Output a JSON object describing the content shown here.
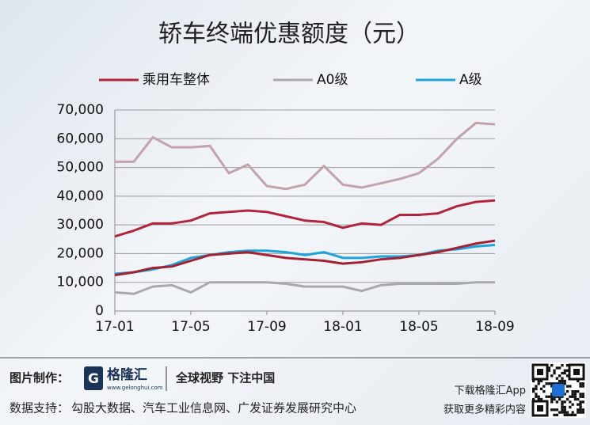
{
  "chart_data": {
    "type": "line",
    "title": "轿车终端优惠额度（元）",
    "categories": [
      "17-01",
      null,
      null,
      null,
      "17-05",
      null,
      null,
      null,
      "17-09",
      null,
      null,
      null,
      "18-01",
      null,
      null,
      null,
      "18-05",
      null,
      null,
      null,
      "18-09"
    ],
    "series": [
      {
        "name": "乘用车整体",
        "color": "#b3243a",
        "values": [
          26000,
          28000,
          30500,
          30500,
          31500,
          34000,
          34500,
          35000,
          34500,
          33000,
          31500,
          31000,
          29000,
          30500,
          30000,
          33500,
          33500,
          34000,
          36500,
          38000,
          38500
        ]
      },
      {
        "name": "A0级",
        "color": "#a9a9ad",
        "values": [
          6500,
          6000,
          8500,
          9000,
          6500,
          10000,
          10000,
          10000,
          10000,
          9500,
          8500,
          8500,
          8500,
          7000,
          9000,
          9500,
          9500,
          9500,
          9500,
          10000,
          10000
        ]
      },
      {
        "name": "A级",
        "color": "#1ea3dc",
        "values": [
          13000,
          13500,
          14500,
          16000,
          18500,
          19500,
          20500,
          21000,
          21000,
          20500,
          19500,
          20500,
          18500,
          18500,
          19000,
          19000,
          19500,
          21000,
          21500,
          22500,
          23000
        ]
      },
      {
        "color": "#c4a2ac",
        "values": [
          52000,
          52000,
          60500,
          57000,
          57000,
          57500,
          48000,
          51000,
          43500,
          42500,
          44000,
          50500,
          44000,
          43000,
          44500,
          46000,
          48000,
          53000,
          60000,
          65500,
          65000
        ]
      },
      {
        "color": "#a32232",
        "values": [
          12500,
          13500,
          15000,
          15500,
          17500,
          19500,
          20000,
          20500,
          19500,
          18500,
          18000,
          17500,
          16500,
          17000,
          18000,
          18500,
          19500,
          20500,
          22000,
          23500,
          24500
        ]
      }
    ],
    "ylim": [
      0,
      70000
    ],
    "yticks": [
      0,
      {
        "value": 10000,
        "label": "10,000"
      },
      {
        "value": 20000,
        "label": "20,000"
      },
      {
        "value": 30000,
        "label": "30,000"
      },
      {
        "value": 40000,
        "label": "40,000"
      },
      {
        "value": 50000,
        "label": "50,000"
      },
      {
        "value": 60000,
        "label": "60,000"
      },
      {
        "value": 70000,
        "label": "70,000"
      }
    ],
    "grid": true
  },
  "footer": {
    "made_by_label": "图片制作：",
    "logo_name": "格隆汇",
    "logo_url": "www.gelonghui.com",
    "slogan": "全球视野 下注中国",
    "source_label": "数据支持：",
    "source": "勾股大数据、汽车工业信息网、广发证券发展研究中心",
    "app_line1": "下载格隆汇App",
    "app_line2": "获取更多精彩内容"
  }
}
